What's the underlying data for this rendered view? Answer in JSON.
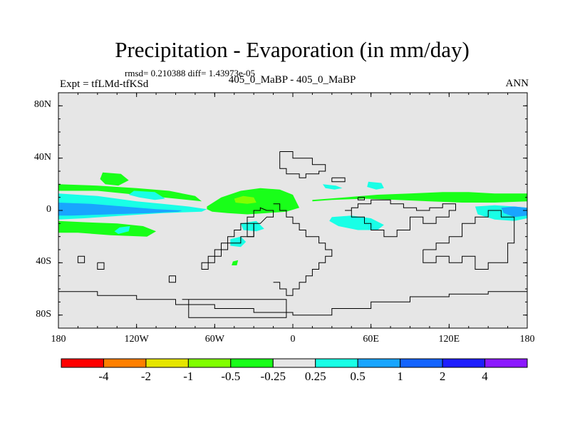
{
  "title": "Precipitation - Evaporation (in mm/day)",
  "stats_line": "rmsd= 0.210388  diff= 1.43973e-05",
  "left_label": "Expt = tfLMd-tfKSd",
  "center_label": "405_0_MaBP - 405_0_MaBP",
  "right_label": "ANN",
  "chart_data": {
    "type": "heatmap",
    "title": "Precipitation - Evaporation (in mm/day)",
    "xlabel": "",
    "ylabel": "",
    "xlim": [
      -180,
      180
    ],
    "ylim": [
      -90,
      90
    ],
    "x_ticks": [
      {
        "value": -180,
        "label": "180"
      },
      {
        "value": -120,
        "label": "120W"
      },
      {
        "value": -60,
        "label": "60W"
      },
      {
        "value": 0,
        "label": "0"
      },
      {
        "value": 60,
        "label": "60E"
      },
      {
        "value": 120,
        "label": "120E"
      },
      {
        "value": 180,
        "label": "180"
      }
    ],
    "y_ticks": [
      {
        "value": 80,
        "label": "80N"
      },
      {
        "value": 40,
        "label": "40N"
      },
      {
        "value": 0,
        "label": "0"
      },
      {
        "value": -40,
        "label": "40S"
      },
      {
        "value": -80,
        "label": "80S"
      }
    ],
    "background_color": "#e6e6e6",
    "colorbar": {
      "levels": [
        "-4",
        "-2",
        "-1",
        "-0.5",
        "-0.25",
        "0.25",
        "0.5",
        "1",
        "2",
        "4"
      ],
      "colors": [
        "#ff0000",
        "#ff8000",
        "#e6e600",
        "#80ff00",
        "#19ff19",
        "#e6e6e6",
        "#19ffe6",
        "#19a5ff",
        "#1464ff",
        "#1e1eff",
        "#8c19ff"
      ]
    },
    "regions": [
      {
        "name": "pacific-tropical-positive",
        "level": 1,
        "lon": [
          -180,
          -150,
          -120,
          -100,
          -80,
          -66,
          -70,
          -100,
          -130,
          -160,
          -180
        ],
        "lat": [
          13,
          11,
          7,
          5,
          3,
          1,
          -1,
          -2,
          -4,
          -6,
          -7
        ]
      },
      {
        "name": "pacific-tropical-core",
        "level": 2,
        "lon": [
          -180,
          -155,
          -130,
          -105,
          -85,
          -88,
          -110,
          -140,
          -170,
          -180
        ],
        "lat": [
          6,
          5,
          3,
          1,
          0,
          -1,
          -2,
          -3,
          -4,
          -4
        ]
      },
      {
        "name": "pacific-itcz-green",
        "level": -1,
        "lon": [
          -180,
          -150,
          -120,
          -95,
          -75,
          -70,
          -90,
          -120,
          -150,
          -180
        ],
        "lat": [
          20,
          19,
          17,
          15,
          11,
          7,
          9,
          12,
          15,
          15
        ]
      },
      {
        "name": "north-pacific-green",
        "level": -1,
        "lon": [
          -146,
          -132,
          -126,
          -134,
          -144,
          -148
        ],
        "lat": [
          29,
          28,
          23,
          19,
          20,
          24
        ]
      },
      {
        "name": "north-pacific-cyan",
        "level": 1,
        "lon": [
          -122,
          -106,
          -98,
          -106,
          -118,
          -126
        ],
        "lat": [
          15,
          14,
          9,
          8,
          10,
          12
        ]
      },
      {
        "name": "south-pacific-green",
        "level": -1,
        "lon": [
          -180,
          -160,
          -135,
          -115,
          -105,
          -112,
          -140,
          -165,
          -180
        ],
        "lat": [
          -8,
          -9,
          -10,
          -12,
          -16,
          -20,
          -19,
          -17,
          -17
        ]
      },
      {
        "name": "atlantic-africa-green",
        "level": -1,
        "lon": [
          -66,
          -55,
          -40,
          -25,
          -10,
          0,
          5,
          -5,
          -20,
          -35,
          -50,
          -62,
          -66
        ],
        "lat": [
          3,
          10,
          15,
          17,
          16,
          12,
          2,
          -1,
          -2,
          -3,
          -2,
          -1,
          1
        ]
      },
      {
        "name": "atlantic-africa-yellow",
        "level": -2,
        "lon": [
          -45,
          -38,
          -30,
          -28,
          -35,
          -44
        ],
        "lat": [
          9,
          11,
          10,
          6,
          5,
          6
        ]
      },
      {
        "name": "atlantic-cyan",
        "level": 1,
        "lon": [
          -40,
          -28,
          -22,
          -28,
          -38
        ],
        "lat": [
          -10,
          -8,
          -14,
          -16,
          -15
        ]
      },
      {
        "name": "south-atlantic-cyan",
        "level": 1,
        "lon": [
          -48,
          -40,
          -36,
          -40,
          -48
        ],
        "lat": [
          -22,
          -20,
          -24,
          -28,
          -27
        ]
      },
      {
        "name": "indian-ocean-green",
        "level": -1,
        "lon": [
          15,
          40,
          65,
          90,
          115,
          135,
          155,
          180,
          180,
          155,
          130,
          105,
          80,
          55,
          30,
          15
        ],
        "lat": [
          8,
          10,
          12,
          13,
          14,
          14,
          13,
          13,
          7,
          6,
          6,
          7,
          8,
          9,
          8,
          7
        ]
      },
      {
        "name": "indian-ocean-cyan",
        "level": 1,
        "lon": [
          30,
          45,
          60,
          70,
          65,
          50,
          35,
          28
        ],
        "lat": [
          -5,
          -4,
          -6,
          -11,
          -15,
          -15,
          -12,
          -8
        ]
      },
      {
        "name": "west-pacific-warm-pool",
        "level": 1,
        "lon": [
          140,
          155,
          170,
          180,
          180,
          170,
          155,
          142
        ],
        "lat": [
          3,
          4,
          3,
          2,
          -6,
          -8,
          -7,
          -3
        ]
      },
      {
        "name": "west-pacific-core",
        "level": 2,
        "lon": [
          160,
          170,
          180,
          180,
          170,
          162
        ],
        "lat": [
          2,
          3,
          2,
          -4,
          -5,
          -2
        ]
      },
      {
        "name": "arabian-cyan",
        "level": 1,
        "lon": [
          23,
          33,
          38,
          32,
          25
        ],
        "lat": [
          20,
          19,
          17,
          16,
          17
        ]
      },
      {
        "name": "india-cyan",
        "level": 1,
        "lon": [
          58,
          68,
          70,
          64,
          57
        ],
        "lat": [
          22,
          21,
          17,
          16,
          18
        ]
      },
      {
        "name": "central-pacific-cyan",
        "level": 1,
        "lon": [
          -133,
          -125,
          -126,
          -134,
          -137
        ],
        "lat": [
          -13,
          -12,
          -16,
          -18,
          -16
        ]
      },
      {
        "name": "south-america-green",
        "level": -1,
        "lon": [
          -46,
          -42,
          -43,
          -47
        ],
        "lat": [
          -39,
          -38,
          -42,
          -42
        ]
      }
    ],
    "coastlines": [
      {
        "name": "south-america",
        "lon": [
          -20,
          -15,
          -15,
          -20,
          -25,
          -30,
          -30,
          -40,
          -40,
          -50,
          -50,
          -55,
          -55,
          -60,
          -60,
          -65,
          -65,
          -70,
          -70,
          -65,
          -65,
          -60,
          -60,
          -55,
          -55,
          -50,
          -50,
          -45,
          -45,
          -40,
          -40,
          -35,
          -35,
          -30,
          -30,
          -25,
          -25,
          -20
        ],
        "lat": [
          0,
          0,
          -5,
          -5,
          -10,
          -10,
          -20,
          -20,
          -25,
          -25,
          -30,
          -30,
          -35,
          -35,
          -40,
          -40,
          -45,
          -45,
          -40,
          -40,
          -35,
          -35,
          -30,
          -30,
          -25,
          -25,
          -20,
          -20,
          -15,
          -15,
          -10,
          -10,
          -5,
          -5,
          0,
          0,
          2,
          0
        ]
      },
      {
        "name": "africa",
        "lon": [
          -15,
          -10,
          -10,
          -5,
          -5,
          0,
          0,
          5,
          5,
          10,
          10,
          20,
          20,
          25,
          25,
          30,
          30,
          25,
          25,
          20,
          20,
          15,
          15,
          10,
          10,
          5,
          5,
          0,
          0,
          -5,
          -5,
          -10,
          -10,
          -15
        ],
        "lat": [
          5,
          5,
          0,
          0,
          -5,
          -5,
          -10,
          -10,
          -15,
          -15,
          -20,
          -20,
          -25,
          -25,
          -30,
          -30,
          -35,
          -35,
          -40,
          -40,
          -45,
          -45,
          -50,
          -50,
          -55,
          -55,
          -60,
          -60,
          -65,
          -65,
          -60,
          -60,
          -55,
          -55
        ]
      },
      {
        "name": "madagascar-like",
        "lon": [
          -35,
          -30,
          -30,
          -35,
          -35
        ],
        "lat": [
          -10,
          -10,
          -20,
          -20,
          -10
        ]
      },
      {
        "name": "north-block",
        "lon": [
          -10,
          0,
          0,
          15,
          15,
          25,
          25,
          20,
          20,
          10,
          10,
          5,
          5,
          -5,
          -5,
          -10,
          -10
        ],
        "lat": [
          45,
          45,
          40,
          40,
          35,
          35,
          30,
          30,
          28,
          28,
          25,
          25,
          28,
          28,
          32,
          32,
          45
        ]
      },
      {
        "name": "north-inlet",
        "lon": [
          30,
          40,
          40,
          30,
          30
        ],
        "lat": [
          25,
          25,
          22,
          22,
          25
        ]
      },
      {
        "name": "north-islands",
        "lon": [
          50,
          55,
          55,
          50,
          50
        ],
        "lat": [
          10,
          10,
          8,
          8,
          10
        ]
      },
      {
        "name": "asia-east",
        "lon": [
          40,
          45,
          45,
          55,
          55,
          60,
          60,
          70,
          70,
          80,
          80,
          90,
          90,
          100,
          100,
          110,
          110,
          120,
          120,
          125,
          125,
          115,
          115,
          105,
          105,
          95,
          95,
          85,
          85,
          75,
          75,
          60,
          60,
          50,
          50,
          45,
          45,
          40
        ],
        "lat": [
          0,
          0,
          -5,
          -5,
          -10,
          -10,
          -15,
          -15,
          -20,
          -20,
          -15,
          -15,
          -5,
          -5,
          -10,
          -10,
          -5,
          -5,
          0,
          0,
          5,
          5,
          2,
          2,
          0,
          0,
          2,
          2,
          5,
          5,
          8,
          8,
          5,
          5,
          2,
          2,
          0,
          0
        ]
      },
      {
        "name": "australia-block",
        "lon": [
          100,
          110,
          110,
          120,
          120,
          130,
          130,
          140,
          140,
          150,
          150,
          160,
          160,
          170,
          170,
          165,
          165,
          150,
          150,
          140,
          140,
          130,
          130,
          120,
          120,
          110,
          110,
          100,
          100
        ],
        "lat": [
          -30,
          -30,
          -25,
          -25,
          -20,
          -20,
          -10,
          -10,
          -5,
          -5,
          0,
          0,
          -5,
          -5,
          -25,
          -25,
          -40,
          -40,
          -45,
          -45,
          -35,
          -35,
          -40,
          -40,
          -35,
          -35,
          -40,
          -40,
          -30
        ]
      },
      {
        "name": "antarctica",
        "lon": [
          -180,
          -150,
          -150,
          -120,
          -120,
          -90,
          -90,
          -60,
          -60,
          -30,
          -30,
          0,
          0,
          30,
          30,
          60,
          60,
          90,
          90,
          120,
          120,
          150,
          150,
          180
        ],
        "lat": [
          -62,
          -62,
          -65,
          -65,
          -68,
          -68,
          -72,
          -72,
          -75,
          -75,
          -78,
          -78,
          -80,
          -80,
          -75,
          -75,
          -70,
          -70,
          -66,
          -66,
          -64,
          -64,
          -62,
          -62
        ]
      },
      {
        "name": "ross-embayment",
        "lon": [
          -85,
          -80,
          -80,
          -5,
          -5,
          -85
        ],
        "lat": [
          -68,
          -68,
          -82,
          -82,
          -68,
          -68
        ]
      },
      {
        "name": "south-islands-1",
        "lon": [
          -165,
          -160,
          -160,
          -165,
          -165
        ],
        "lat": [
          -35,
          -35,
          -40,
          -40,
          -35
        ]
      },
      {
        "name": "south-islands-2",
        "lon": [
          -150,
          -145,
          -145,
          -150,
          -150
        ],
        "lat": [
          -40,
          -40,
          -45,
          -45,
          -40
        ]
      },
      {
        "name": "south-islands-3",
        "lon": [
          -95,
          -90,
          -90,
          -95,
          -95
        ],
        "lat": [
          -50,
          -50,
          -55,
          -55,
          -50
        ]
      }
    ]
  }
}
